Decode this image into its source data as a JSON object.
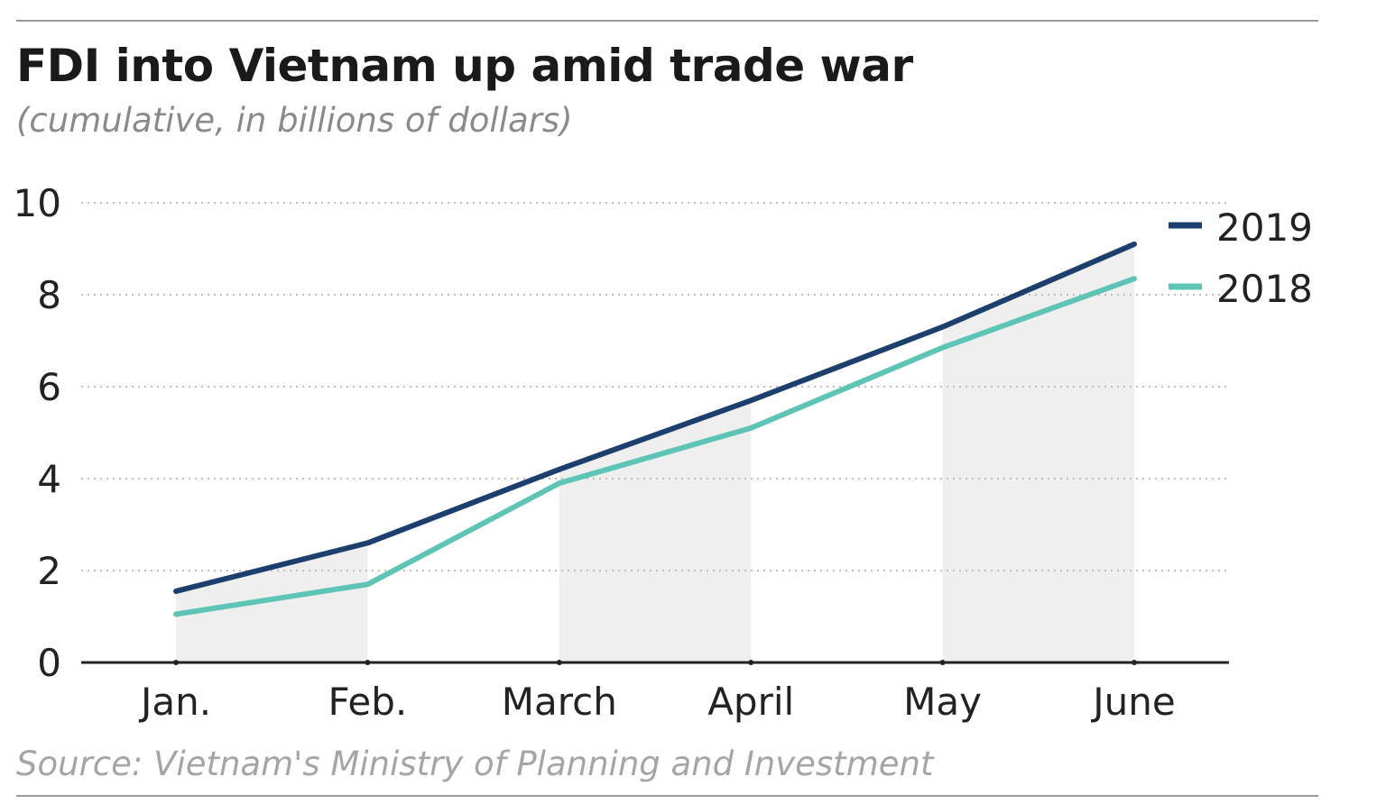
{
  "chart_data": {
    "type": "line",
    "title": "FDI into Vietnam up amid trade war",
    "subtitle": "(cumulative, in billions of dollars)",
    "source": "Source: Vietnam's Ministry of Planning and Investment",
    "categories": [
      "Jan.",
      "Feb.",
      "March",
      "April",
      "May",
      "June"
    ],
    "yticks": [
      "0",
      "2",
      "4",
      "6",
      "8",
      "10"
    ],
    "ylim": [
      0,
      10
    ],
    "grid": true,
    "legend_position": "top-right",
    "series": [
      {
        "name": "2019",
        "color": "#1c3f6e",
        "values": [
          1.55,
          2.6,
          4.2,
          5.7,
          7.3,
          9.1
        ]
      },
      {
        "name": "2018",
        "color": "#5ec4b6",
        "values": [
          1.05,
          1.7,
          3.9,
          5.1,
          6.85,
          8.35
        ]
      }
    ]
  }
}
